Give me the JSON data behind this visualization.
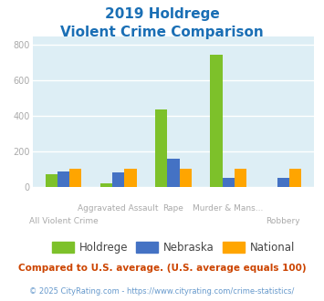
{
  "title_line1": "2019 Holdrege",
  "title_line2": "Violent Crime Comparison",
  "categories": [
    "All Violent Crime",
    "Aggravated Assault",
    "Rape",
    "Murder & Mans...",
    "Robbery"
  ],
  "holdrege": [
    70,
    18,
    435,
    745,
    0
  ],
  "nebraska": [
    88,
    78,
    158,
    48,
    50
  ],
  "national": [
    100,
    100,
    100,
    100,
    100
  ],
  "holdrege_color": "#7dc12a",
  "nebraska_color": "#4472c4",
  "national_color": "#ffa500",
  "bg_color": "#ddeef5",
  "title_color": "#1a6fb5",
  "tick_color": "#aaaaaa",
  "ylim": [
    0,
    850
  ],
  "yticks": [
    0,
    200,
    400,
    600,
    800
  ],
  "legend_labels": [
    "Holdrege",
    "Nebraska",
    "National"
  ],
  "legend_text_color": "#444444",
  "footnote1": "Compared to U.S. average. (U.S. average equals 100)",
  "footnote2": "© 2025 CityRating.com - https://www.cityrating.com/crime-statistics/",
  "footnote1_color": "#cc4400",
  "footnote2_color": "#6699cc"
}
